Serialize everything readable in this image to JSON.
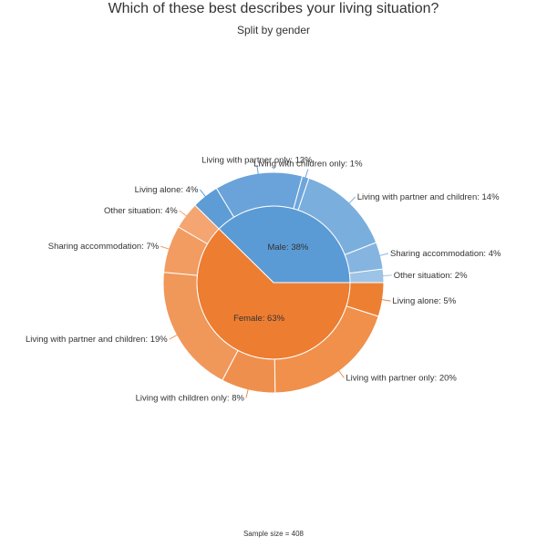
{
  "chart_data": {
    "type": "pie",
    "title": "Which of these best describes your living situation?",
    "subtitle": "Split by gender",
    "footnote": "Sample size = 408",
    "inner": [
      {
        "label": "Male: 38%",
        "value": 38,
        "color": "#5b9bd5"
      },
      {
        "label": "Female: 63%",
        "value": 63,
        "color": "#ed7d31"
      }
    ],
    "outer": [
      {
        "label": "Other situation: 2%",
        "value": 2,
        "group": "Male",
        "color": "#9dc3e6"
      },
      {
        "label": "Sharing accommodation: 4%",
        "value": 4,
        "group": "Male",
        "color": "#86b4e0"
      },
      {
        "label": "Living with partner and children: 14%",
        "value": 14,
        "group": "Male",
        "color": "#7aaedd"
      },
      {
        "label": "Living with children only: 1%",
        "value": 1,
        "group": "Male",
        "color": "#6ea6db"
      },
      {
        "label": "Living with partner only: 13%",
        "value": 13,
        "group": "Male",
        "color": "#6aa3d9"
      },
      {
        "label": "Living alone: 4%",
        "value": 4,
        "group": "Male",
        "color": "#5e9cd6"
      },
      {
        "label": "Other situation: 4%",
        "value": 4,
        "group": "Female",
        "color": "#f4a572"
      },
      {
        "label": "Sharing accommodation: 7%",
        "value": 7,
        "group": "Female",
        "color": "#f29c62"
      },
      {
        "label": "Living with partner and children: 19%",
        "value": 19,
        "group": "Female",
        "color": "#f0975a"
      },
      {
        "label": "Living with children only: 8%",
        "value": 8,
        "group": "Female",
        "color": "#ef8f4e"
      },
      {
        "label": "Living with partner only: 20%",
        "value": 20,
        "group": "Female",
        "color": "#f0904a"
      },
      {
        "label": "Living alone: 5%",
        "value": 5,
        "group": "Female",
        "color": "#ed7f33"
      }
    ]
  }
}
